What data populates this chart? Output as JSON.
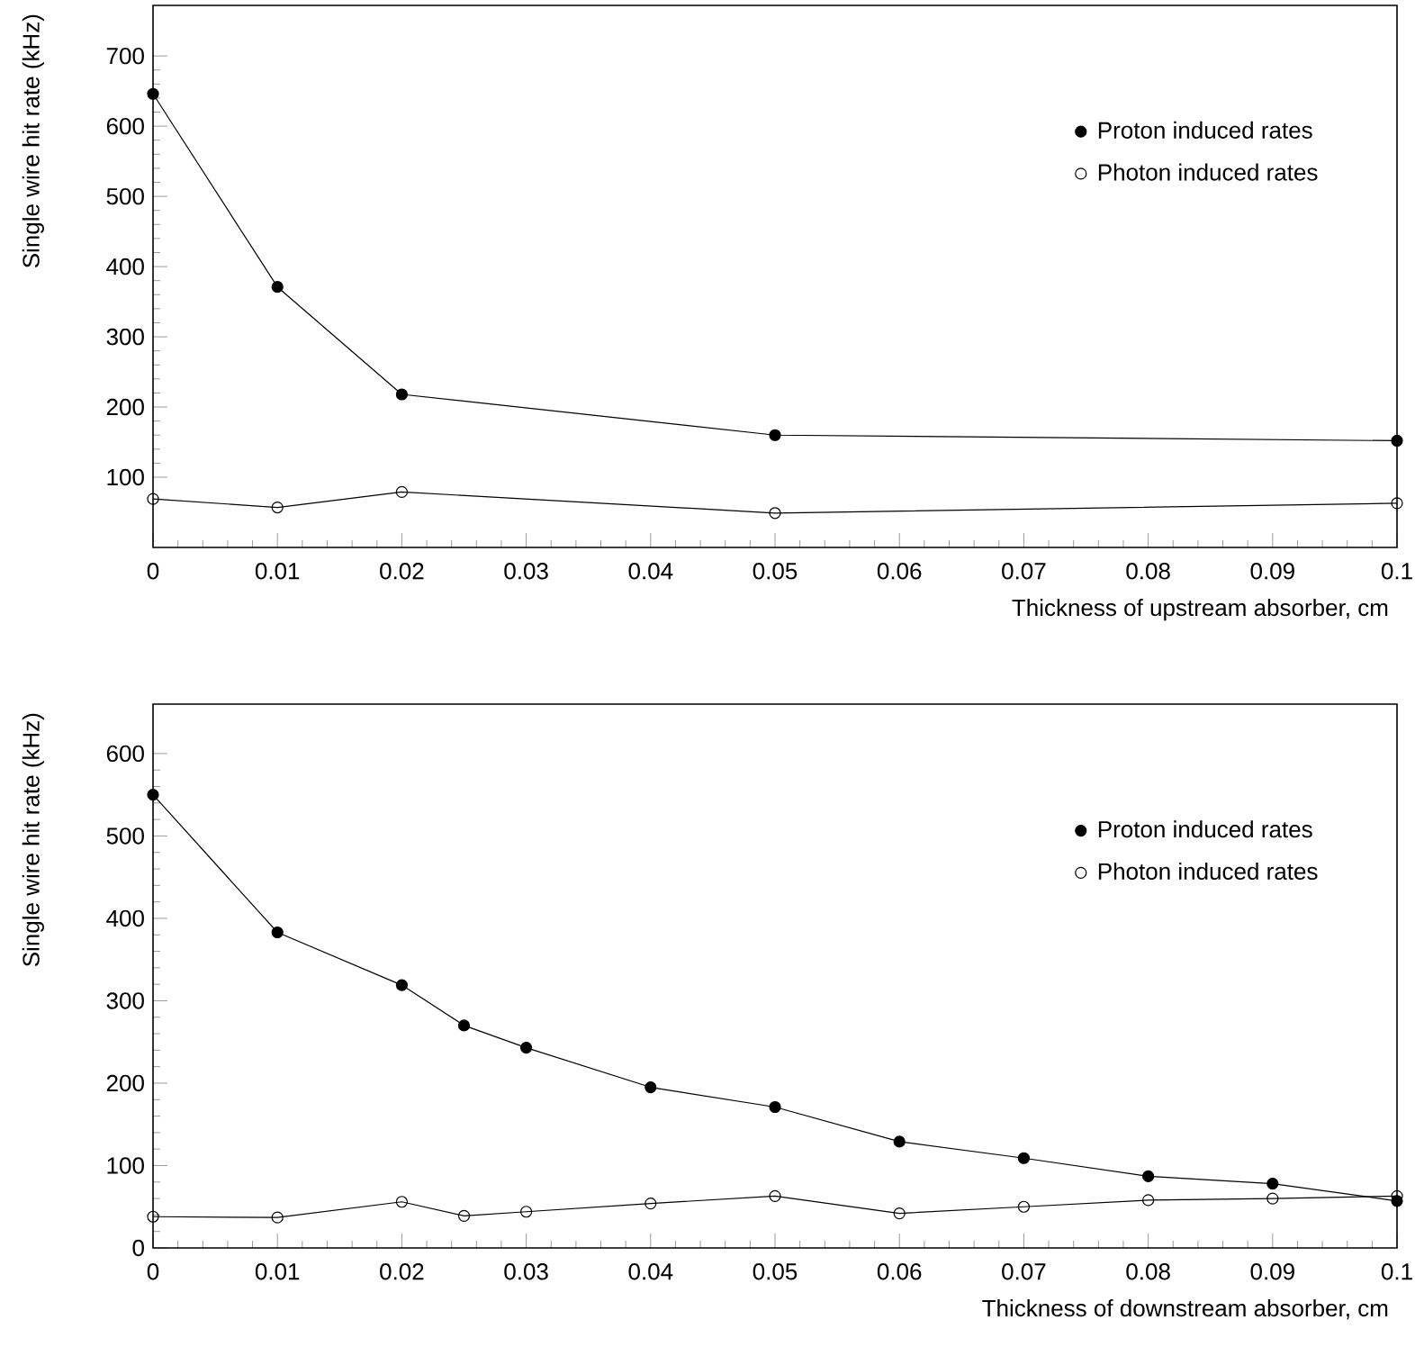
{
  "chart_data": [
    {
      "type": "line",
      "xlabel": "Thickness of upstream absorber, cm",
      "ylabel": "Single wire hit rate (kHz)",
      "x": [
        0,
        0.01,
        0.02,
        0.05,
        0.1
      ],
      "xlim": [
        0,
        0.1
      ],
      "xticks": [
        0,
        0.01,
        0.02,
        0.03,
        0.04,
        0.05,
        0.06,
        0.07,
        0.08,
        0.09,
        0.1
      ],
      "ylim": [
        0,
        772
      ],
      "yticks": [
        100,
        200,
        300,
        400,
        500,
        600,
        700
      ],
      "marker": "circle",
      "legend": "top right",
      "grid": false,
      "series": [
        {
          "name": "Proton induced rates",
          "color": "#000000",
          "values": [
            646,
            371,
            218,
            160,
            152
          ]
        },
        {
          "name": "Photon induced rates",
          "color": "#000000",
          "values": [
            69,
            57,
            79,
            49,
            63
          ]
        }
      ]
    },
    {
      "type": "line",
      "xlabel": "Thickness of downstream absorber, cm",
      "ylabel": "Single wire hit rate (kHz)",
      "x": [
        0,
        0.01,
        0.02,
        0.025,
        0.03,
        0.04,
        0.05,
        0.06,
        0.07,
        0.08,
        0.09,
        0.1
      ],
      "xlim": [
        0,
        0.1
      ],
      "xticks": [
        0,
        0.01,
        0.02,
        0.03,
        0.04,
        0.05,
        0.06,
        0.07,
        0.08,
        0.09,
        0.1
      ],
      "ylim": [
        0,
        660
      ],
      "yticks": [
        0,
        100,
        200,
        300,
        400,
        500,
        600
      ],
      "marker": "circle",
      "legend": "top right",
      "grid": false,
      "series": [
        {
          "name": "Proton induced rates",
          "color": "#000000",
          "values": [
            550,
            383,
            319,
            270,
            243,
            195,
            171,
            129,
            109,
            87,
            78,
            57
          ]
        },
        {
          "name": "Photon induced rates",
          "color": "#000000",
          "values": [
            38,
            37,
            56,
            39,
            44,
            54,
            63,
            42,
            50,
            58,
            60,
            63
          ]
        }
      ]
    }
  ]
}
